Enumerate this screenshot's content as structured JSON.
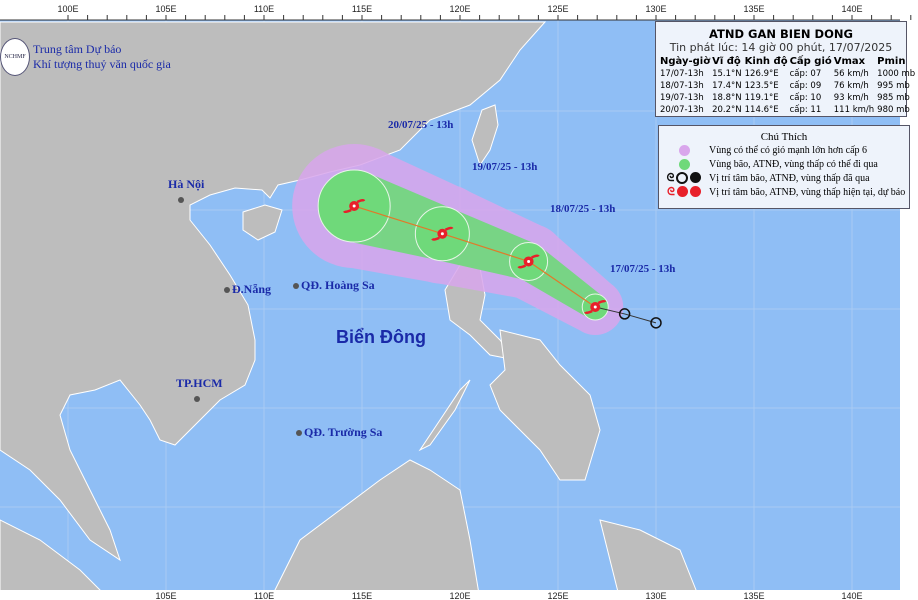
{
  "organization": {
    "line1": "Trung tâm Dự báo",
    "line2": "Khí tượng thuỷ văn quốc gia",
    "logo_text": "NCHMF"
  },
  "axis": {
    "top_ticks": [
      "100E",
      "105E",
      "110E",
      "115E",
      "120E",
      "125E",
      "130E",
      "135E",
      "140E"
    ],
    "bottom_ticks": [
      "105E",
      "110E",
      "115E",
      "120E",
      "125E",
      "130E",
      "135E",
      "140E"
    ]
  },
  "places": [
    {
      "name": "Hà Nội"
    },
    {
      "name": "Đ.Nẵng"
    },
    {
      "name": "QĐ. Hoàng Sa"
    },
    {
      "name": "TP.HCM"
    },
    {
      "name": "QĐ. Trường Sa"
    }
  ],
  "sea_label": "Biển Đông",
  "info_box": {
    "title": "ATND GAN BIEN DONG",
    "issued": "Tin phát lúc: 14 giờ 00 phút, 17/07/2025",
    "headers": [
      "Ngày-giờ",
      "Vĩ độ",
      "Kinh độ",
      "Cấp gió",
      "Vmax",
      "Pmin"
    ],
    "rows": [
      [
        "17/07-13h",
        "15.1°N",
        "126.9°E",
        "cấp: 07",
        "56 km/h",
        "1000 mb"
      ],
      [
        "18/07-13h",
        "17.4°N",
        "123.5°E",
        "cấp: 09",
        "76 km/h",
        "995 mb"
      ],
      [
        "19/07-13h",
        "18.8°N",
        "119.1°E",
        "cấp: 10",
        "93 km/h",
        "985 mb"
      ],
      [
        "20/07-13h",
        "20.2°N",
        "114.6°E",
        "cấp: 11",
        "111 km/h",
        "980 mb"
      ]
    ]
  },
  "legend": {
    "title": "Chú Thích",
    "items": [
      {
        "text": "Vùng có thể có gió mạnh lớn hơn cấp 6",
        "color": "#d9a6ec"
      },
      {
        "text": "Vùng bão, ATNĐ, vùng thấp có thể đi qua",
        "color": "#6fd97a"
      },
      {
        "text": "Vị trí tâm bão, ATNĐ, vùng thấp đã qua",
        "color": "#111111"
      },
      {
        "text": "Vị trí tâm bão, ATNĐ, vùng thấp hiện tại, dự báo",
        "color": "#e8202a"
      }
    ]
  },
  "track": {
    "forecast_points": [
      {
        "label": "17/07/25 - 13h",
        "lat": 15.1,
        "lon": 126.9
      },
      {
        "label": "18/07/25 - 13h",
        "lat": 17.4,
        "lon": 123.5
      },
      {
        "label": "19/07/25 - 13h",
        "lat": 18.8,
        "lon": 119.1
      },
      {
        "label": "20/07/25 - 13h",
        "lat": 20.2,
        "lon": 114.6
      }
    ],
    "past_points": [
      {
        "lat": 14.75,
        "lon": 128.4
      },
      {
        "lat": 14.3,
        "lon": 130.0
      }
    ],
    "colors": {
      "wind_zone": "#d9a6ec",
      "cone": "#6fd97a",
      "track_line": "#e07a2a",
      "current": "#e8202a",
      "past": "#111111"
    }
  }
}
